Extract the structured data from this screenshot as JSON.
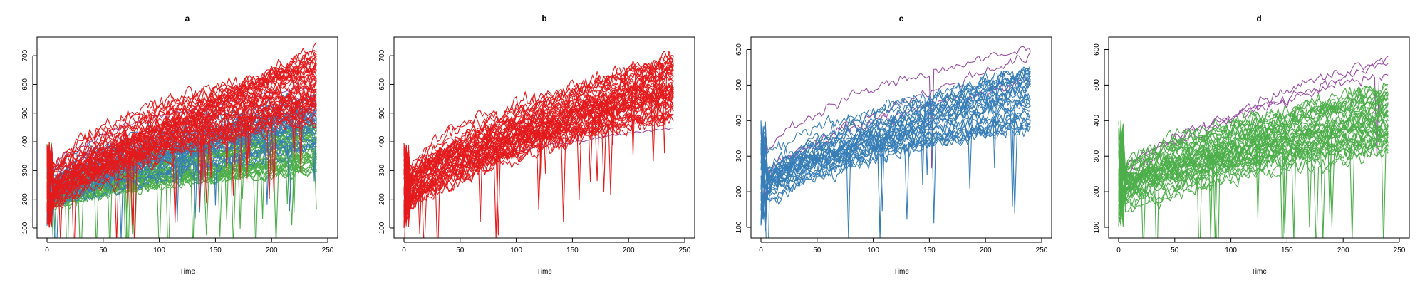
{
  "colors": {
    "red": "#e41a1c",
    "blue": "#377eb8",
    "green": "#4daf4a",
    "purple": "#984ea3"
  },
  "chart_data": [
    {
      "type": "line",
      "title": "a",
      "xlabel": "Time",
      "ylabel": "",
      "xlim": [
        0,
        250
      ],
      "ylim": [
        90,
        740
      ],
      "xticks": [
        0,
        50,
        100,
        150,
        200,
        250
      ],
      "yticks": [
        100,
        200,
        300,
        400,
        500,
        600,
        700
      ],
      "series_groups": [
        {
          "color": "green",
          "count": 45,
          "start": [
            150,
            230
          ],
          "end": [
            300,
            470
          ],
          "noise": 28
        },
        {
          "color": "purple",
          "count": 3,
          "start": [
            190,
            240
          ],
          "end": [
            440,
            600
          ],
          "noise": 15
        },
        {
          "color": "blue",
          "count": 30,
          "start": [
            170,
            250
          ],
          "end": [
            380,
            580
          ],
          "noise": 30
        },
        {
          "color": "red",
          "count": 45,
          "start": [
            150,
            240
          ],
          "end": [
            480,
            720
          ],
          "noise": 35
        }
      ]
    },
    {
      "type": "line",
      "title": "b",
      "xlabel": "Time",
      "ylabel": "",
      "xlim": [
        0,
        250
      ],
      "ylim": [
        90,
        740
      ],
      "xticks": [
        0,
        50,
        100,
        150,
        200,
        250
      ],
      "yticks": [
        100,
        200,
        300,
        400,
        500,
        600,
        700
      ],
      "series_groups": [
        {
          "color": "purple",
          "count": 1,
          "start": [
            200,
            210
          ],
          "end": [
            440,
            450
          ],
          "noise": 6
        },
        {
          "color": "red",
          "count": 48,
          "start": [
            150,
            240
          ],
          "end": [
            480,
            720
          ],
          "noise": 35
        }
      ]
    },
    {
      "type": "line",
      "title": "c",
      "xlabel": "Time",
      "ylabel": "",
      "xlim": [
        0,
        250
      ],
      "ylim": [
        90,
        615
      ],
      "xticks": [
        0,
        50,
        100,
        150,
        200,
        250
      ],
      "yticks": [
        100,
        200,
        300,
        400,
        500,
        600
      ],
      "series_groups": [
        {
          "color": "purple",
          "count": 3,
          "start": [
            200,
            240
          ],
          "end": [
            480,
            600
          ],
          "noise": 18
        },
        {
          "color": "blue",
          "count": 30,
          "start": [
            160,
            240
          ],
          "end": [
            380,
            560
          ],
          "noise": 30
        }
      ]
    },
    {
      "type": "line",
      "title": "d",
      "xlabel": "Time",
      "ylabel": "",
      "xlim": [
        0,
        250
      ],
      "ylim": [
        90,
        615
      ],
      "xticks": [
        0,
        50,
        100,
        150,
        200,
        250
      ],
      "yticks": [
        100,
        200,
        300,
        400,
        500,
        600
      ],
      "series_groups": [
        {
          "color": "purple",
          "count": 3,
          "start": [
            220,
            330
          ],
          "end": [
            420,
            600
          ],
          "noise": 18
        },
        {
          "color": "green",
          "count": 40,
          "start": [
            150,
            230
          ],
          "end": [
            310,
            500
          ],
          "noise": 30
        }
      ]
    }
  ]
}
